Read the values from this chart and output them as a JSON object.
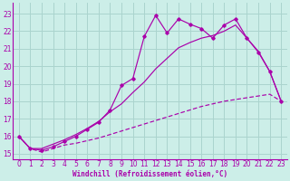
{
  "xlabel": "Windchill (Refroidissement éolien,°C)",
  "bg_color": "#cceee8",
  "grid_color": "#aad4ce",
  "line_color": "#aa00aa",
  "spine_color": "#aa00aa",
  "xlim": [
    -0.5,
    23.5
  ],
  "ylim": [
    14.7,
    23.6
  ],
  "xticks": [
    0,
    1,
    2,
    3,
    4,
    5,
    6,
    7,
    8,
    9,
    10,
    11,
    12,
    13,
    14,
    15,
    16,
    17,
    18,
    19,
    20,
    21,
    22,
    23
  ],
  "yticks": [
    15,
    16,
    17,
    18,
    19,
    20,
    21,
    22,
    23
  ],
  "line1_x": [
    0,
    1,
    2,
    3,
    4,
    5,
    6,
    7,
    8,
    9,
    10,
    11,
    12,
    13,
    14,
    15,
    16,
    17,
    18,
    19,
    20,
    21,
    22,
    23
  ],
  "line1_y": [
    16.0,
    15.3,
    15.1,
    15.3,
    15.5,
    15.6,
    15.75,
    15.9,
    16.1,
    16.3,
    16.5,
    16.7,
    16.9,
    17.1,
    17.3,
    17.5,
    17.7,
    17.85,
    18.0,
    18.1,
    18.2,
    18.3,
    18.4,
    18.0
  ],
  "line2_x": [
    0,
    1,
    2,
    3,
    4,
    5,
    6,
    7,
    8,
    9,
    10,
    11,
    12,
    13,
    14,
    15,
    16,
    17,
    18,
    19,
    20,
    21,
    22,
    23
  ],
  "line2_y": [
    16.0,
    15.3,
    15.2,
    15.4,
    15.7,
    16.0,
    16.4,
    16.8,
    17.5,
    18.9,
    19.3,
    21.7,
    22.9,
    21.9,
    22.7,
    22.4,
    22.15,
    21.6,
    22.35,
    22.7,
    21.6,
    20.8,
    19.7,
    18.0
  ],
  "line3_x": [
    0,
    1,
    2,
    3,
    4,
    5,
    6,
    7,
    8,
    9,
    10,
    11,
    12,
    13,
    14,
    15,
    16,
    17,
    18,
    19,
    20,
    21,
    22,
    23
  ],
  "line3_y": [
    16.0,
    15.3,
    15.3,
    15.55,
    15.8,
    16.1,
    16.45,
    16.85,
    17.4,
    17.85,
    18.5,
    19.1,
    19.85,
    20.45,
    21.05,
    21.35,
    21.6,
    21.75,
    22.0,
    22.35,
    21.6,
    20.85,
    19.7,
    18.0
  ],
  "tick_fontsize": 5.5,
  "xlabel_fontsize": 5.5
}
